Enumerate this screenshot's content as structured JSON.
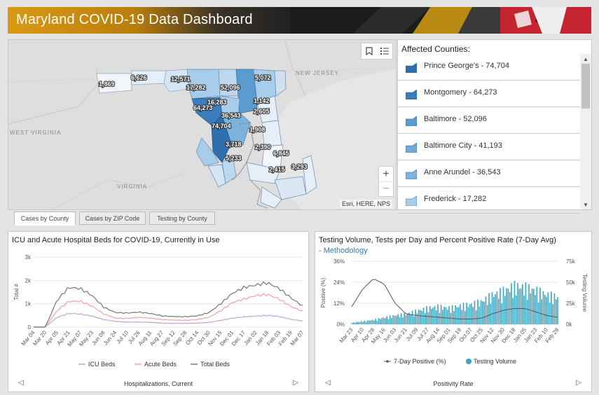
{
  "header": {
    "title": "Maryland COVID-19 Data Dashboard"
  },
  "map": {
    "state_labels": [
      "NEW JERSEY",
      "WEST VIRGINIA",
      "VIRGINIA"
    ],
    "county_labels": [
      "1,869",
      "6,626",
      "12,571",
      "17,282",
      "52,096",
      "5,072",
      "16,283",
      "64,273",
      "1,142",
      "2,605",
      "36,543",
      "74,704",
      "1,908",
      "3,718",
      "2,390",
      "6,845",
      "5,233",
      "2,415",
      "3,293"
    ],
    "attribution": "Esri, HERE, NPS",
    "tools": {
      "bookmark_icon": "bookmark-icon",
      "legend_icon": "list-icon"
    },
    "zoom_in": "+",
    "zoom_out": "−"
  },
  "counties": {
    "title": "Affected Counties:",
    "items": [
      {
        "label": "Prince George's - 74,704",
        "color": "#2f6fb0"
      },
      {
        "label": "Montgomery - 64,273",
        "color": "#3b7cbc"
      },
      {
        "label": "Baltimore - 52,096",
        "color": "#5a9cd0"
      },
      {
        "label": "Baltimore City - 41,193",
        "color": "#6eaad8"
      },
      {
        "label": "Anne Arundel - 36,543",
        "color": "#7cb3dd"
      },
      {
        "label": "Frederick - 17,282",
        "color": "#a8cdeb"
      }
    ]
  },
  "tabs": [
    {
      "label": "Cases by County",
      "active": true
    },
    {
      "label": "Cases by ZIP Code",
      "active": false
    },
    {
      "label": "Testing by County",
      "active": false
    }
  ],
  "hospital": {
    "title": "ICU and Acute Hospital Beds for COVID-19, Currently in Use",
    "footer": "Hospitalizations, Current",
    "legend": [
      "ICU Beds",
      "Acute Beds",
      "Total Beds"
    ]
  },
  "testing": {
    "title": "Testing Volume, Tests per Day and Percent Positive Rate (7-Day Avg)",
    "subtitle": "- Methodology",
    "footer": "Positivity Rate",
    "legend": [
      "7-Day Positive (%)",
      "Testing Volume"
    ]
  },
  "chart_data": [
    {
      "type": "line",
      "title": "ICU and Acute Hospital Beds for COVID-19, Currently in Use",
      "ylabel": "Total #",
      "ylim": [
        0,
        3000
      ],
      "yticks": [
        "0",
        "1k",
        "2k",
        "3k"
      ],
      "x": [
        "Mar 04",
        "Mar 20",
        "Apr 05",
        "Apr 21",
        "May 07",
        "May 23",
        "Jun 08",
        "Jun 24",
        "Jul 10",
        "Jul 26",
        "Aug 11",
        "Aug 27",
        "Sep 12",
        "Sep 28",
        "Oct 14",
        "Oct 30",
        "Nov 15",
        "Dec 01",
        "Dec 17",
        "Jan 02",
        "Jan 18",
        "Feb 03",
        "Feb 19",
        "Mar 07"
      ],
      "series": [
        {
          "name": "ICU Beds",
          "color": "#c8a0d8",
          "values": [
            0,
            0,
            420,
            580,
            560,
            470,
            320,
            240,
            210,
            220,
            200,
            170,
            160,
            160,
            170,
            200,
            290,
            380,
            440,
            470,
            500,
            450,
            330,
            260
          ]
        },
        {
          "name": "Acute Beds",
          "color": "#f0a0a8",
          "values": [
            0,
            0,
            700,
            1100,
            1110,
            900,
            560,
            380,
            370,
            420,
            380,
            320,
            300,
            290,
            320,
            420,
            700,
            1050,
            1200,
            1350,
            1400,
            1200,
            880,
            680
          ]
        },
        {
          "name": "Total Beds",
          "color": "#777777",
          "values": [
            0,
            0,
            1150,
            1700,
            1650,
            1350,
            850,
            620,
            600,
            640,
            580,
            480,
            450,
            440,
            480,
            620,
            1000,
            1450,
            1700,
            1800,
            1900,
            1650,
            1250,
            900
          ]
        }
      ]
    },
    {
      "type": "bar",
      "title": "Testing Volume, Tests per Day and Percent Positive Rate (7-Day Avg)",
      "ylabel": "Positive (%)",
      "y2label": "Testing Volume",
      "ylim": [
        0,
        36
      ],
      "y2lim": [
        0,
        75000
      ],
      "yticks": [
        "0%",
        "12%",
        "24%",
        "36%"
      ],
      "y2ticks": [
        "0k",
        "25k",
        "50k",
        "75k"
      ],
      "x": [
        "Mar 23",
        "Apr 10",
        "Apr 28",
        "May 16",
        "Jun 03",
        "Jun 21",
        "Jul 09",
        "Jul 27",
        "Aug 14",
        "Sep 01",
        "Sep 19",
        "Oct 07",
        "Oct 25",
        "Nov 12",
        "Nov 30",
        "Dec 18",
        "Jan 05",
        "Jan 23",
        "Feb 10",
        "Feb 28"
      ],
      "series": [
        {
          "name": "7-Day Positive (%)",
          "color": "#555555",
          "values": [
            10,
            20,
            26,
            23,
            12,
            6,
            5,
            4.5,
            4,
            3.5,
            3,
            3,
            3.5,
            6,
            8,
            9,
            9,
            7,
            5,
            4
          ]
        },
        {
          "name": "Testing Volume",
          "color": "#3aa3c0",
          "values": [
            2000,
            4000,
            6000,
            9000,
            12000,
            14000,
            18000,
            22000,
            24000,
            22000,
            25000,
            27000,
            31000,
            40000,
            45000,
            52000,
            50000,
            46000,
            40000,
            37000
          ]
        }
      ]
    }
  ]
}
